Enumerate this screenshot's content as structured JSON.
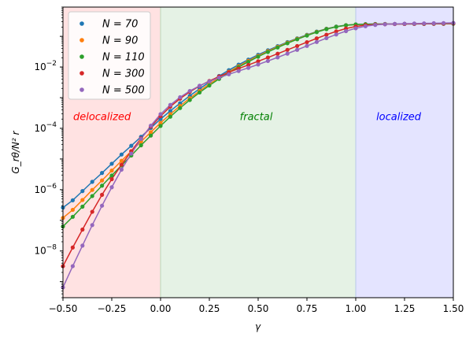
{
  "chart_data": {
    "type": "scatter",
    "title": "",
    "xlabel": "γ",
    "ylabel": "G_rθ/N² r",
    "yscale": "log",
    "xlim": [
      -0.5,
      1.5
    ],
    "ylim": [
      3e-10,
      0.9
    ],
    "x_ticks": [
      -0.5,
      -0.25,
      0.0,
      0.25,
      0.5,
      0.75,
      1.0,
      1.25,
      1.5
    ],
    "x_tick_labels": [
      "−0.50",
      "−0.25",
      "0.00",
      "0.25",
      "0.50",
      "0.75",
      "1.00",
      "1.25",
      "1.50"
    ],
    "y_ticks": [
      1e-08,
      1e-06,
      0.0001,
      0.01
    ],
    "y_tick_labels": [
      {
        "base": "10",
        "exp": "−8"
      },
      {
        "base": "10",
        "exp": "−6"
      },
      {
        "base": "10",
        "exp": "−4"
      },
      {
        "base": "10",
        "exp": "−2"
      }
    ],
    "regions": [
      {
        "name": "delocalized",
        "x_range": [
          -0.5,
          0.0
        ],
        "color": "#ffe2e2",
        "label_color": "#ff0000",
        "label_x": -0.3,
        "label_y": 0.00025
      },
      {
        "name": "fractal",
        "x_range": [
          0.0,
          1.0
        ],
        "color": "#e5f2e5",
        "label_color": "#008000",
        "label_x": 0.49,
        "label_y": 0.00025
      },
      {
        "name": "localized",
        "x_range": [
          1.0,
          1.5
        ],
        "color": "#e4e4ff",
        "label_color": "#0000ff",
        "label_x": 1.22,
        "label_y": 0.00025
      }
    ],
    "x": [
      -0.5,
      -0.45,
      -0.4,
      -0.35,
      -0.3,
      -0.25,
      -0.2,
      -0.15,
      -0.1,
      -0.05,
      0.0,
      0.05,
      0.1,
      0.15,
      0.2,
      0.25,
      0.3,
      0.35,
      0.4,
      0.45,
      0.5,
      0.55,
      0.6,
      0.65,
      0.7,
      0.75,
      0.8,
      0.85,
      0.9,
      0.95,
      1.0,
      1.05,
      1.1,
      1.15,
      1.2,
      1.25,
      1.3,
      1.35,
      1.4,
      1.45,
      1.5
    ],
    "legend": {
      "placement": "top-left",
      "prefix": "N"
    },
    "series": [
      {
        "name": "70",
        "color": "#1f77b4",
        "values": [
          2.6e-07,
          4.5e-07,
          9e-07,
          1.8e-06,
          3.5e-06,
          7e-06,
          1.4e-05,
          2.7e-05,
          5.3e-05,
          0.000103,
          0.0002,
          0.00037,
          0.00066,
          0.00115,
          0.00195,
          0.0032,
          0.0051,
          0.0079,
          0.0119,
          0.0174,
          0.025,
          0.035,
          0.048,
          0.065,
          0.086,
          0.112,
          0.143,
          0.177,
          0.208,
          0.232,
          0.245,
          0.25,
          0.252,
          0.252,
          0.253,
          0.254,
          0.255,
          0.256,
          0.257,
          0.258,
          0.26
        ]
      },
      {
        "name": "90",
        "color": "#ff7f0e",
        "values": [
          1.2e-07,
          2.2e-07,
          4.6e-07,
          9.8e-07,
          2e-06,
          4.2e-06,
          8.7e-06,
          1.8e-05,
          3.7e-05,
          7.5e-05,
          0.00015,
          0.00029,
          0.00054,
          0.00096,
          0.00166,
          0.0028,
          0.0045,
          0.007,
          0.0107,
          0.0159,
          0.0231,
          0.0328,
          0.0456,
          0.0622,
          0.0833,
          0.109,
          0.14,
          0.175,
          0.206,
          0.23,
          0.244,
          0.249,
          0.251,
          0.252,
          0.253,
          0.254,
          0.255,
          0.256,
          0.257,
          0.258,
          0.259
        ]
      },
      {
        "name": "110",
        "color": "#2ca02c",
        "values": [
          6.3e-08,
          1.3e-07,
          2.8e-07,
          6.2e-07,
          1.35e-06,
          2.9e-06,
          6.2e-06,
          1.3e-05,
          2.8e-05,
          5.8e-05,
          0.00012,
          0.00024,
          0.00046,
          0.00084,
          0.00148,
          0.0025,
          0.0041,
          0.0065,
          0.0099,
          0.0148,
          0.0217,
          0.0309,
          0.0433,
          0.0594,
          0.0801,
          0.106,
          0.137,
          0.172,
          0.204,
          0.229,
          0.243,
          0.248,
          0.251,
          0.252,
          0.253,
          0.254,
          0.255,
          0.256,
          0.257,
          0.258,
          0.259
        ]
      },
      {
        "name": "300",
        "color": "#d62728",
        "values": [
          3.2e-09,
          1.3e-08,
          5e-08,
          1.9e-07,
          6.8e-07,
          2.2e-06,
          6.5e-06,
          1.8e-05,
          4.7e-05,
          0.000113,
          0.00025,
          0.00051,
          0.00093,
          0.00155,
          0.0024,
          0.0035,
          0.0049,
          0.0067,
          0.0089,
          0.0117,
          0.0154,
          0.0204,
          0.0271,
          0.0362,
          0.0484,
          0.0646,
          0.0858,
          0.113,
          0.145,
          0.18,
          0.21,
          0.232,
          0.244,
          0.249,
          0.252,
          0.254,
          0.256,
          0.258,
          0.26,
          0.262,
          0.265
        ]
      },
      {
        "name": "500",
        "color": "#9467bd",
        "values": [
          6.5e-10,
          3.2e-09,
          1.5e-08,
          7e-08,
          3e-07,
          1.2e-06,
          4.5e-06,
          1.5e-05,
          4.5e-05,
          0.000122,
          0.00029,
          0.00058,
          0.00103,
          0.00165,
          0.00245,
          0.0034,
          0.0045,
          0.0058,
          0.0074,
          0.0094,
          0.0121,
          0.0157,
          0.0206,
          0.0273,
          0.0364,
          0.0488,
          0.0654,
          0.0873,
          0.115,
          0.148,
          0.183,
          0.214,
          0.236,
          0.248,
          0.255,
          0.259,
          0.262,
          0.265,
          0.268,
          0.271,
          0.275
        ]
      }
    ]
  }
}
